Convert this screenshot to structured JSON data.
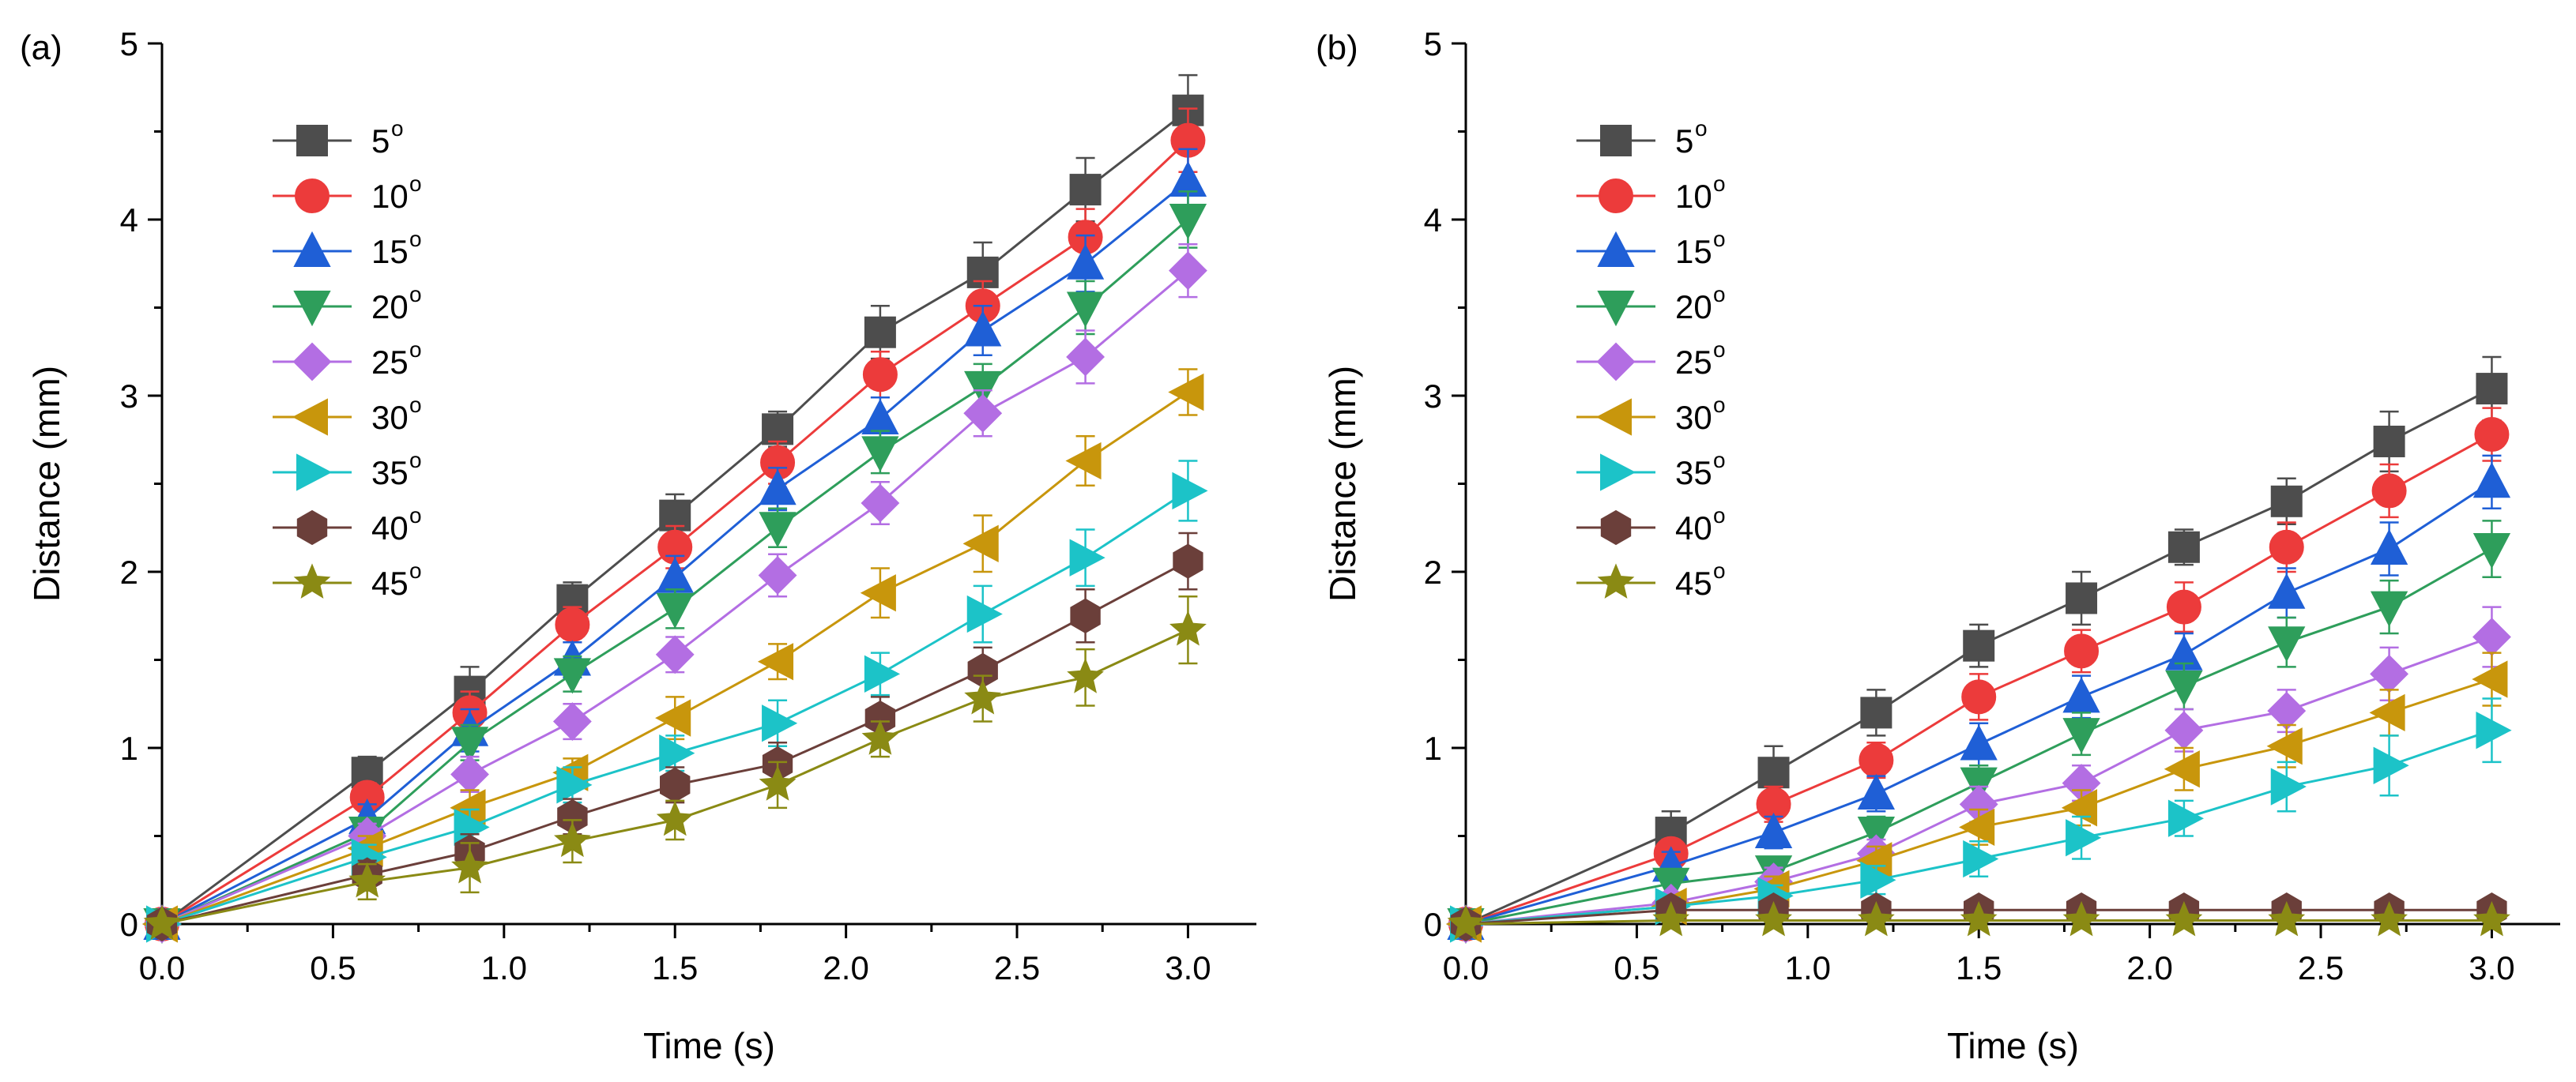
{
  "chart_data": [
    {
      "panel_label": "(a)",
      "type": "line",
      "xlabel": "Time (s)",
      "ylabel": "Distance (mm)",
      "xlim": [
        0,
        3.2
      ],
      "ylim": [
        0,
        5
      ],
      "x_ticks": [
        "0.0",
        "0.5",
        "1.0",
        "1.5",
        "2.0",
        "2.5",
        "3.0"
      ],
      "y_ticks": [
        "0",
        "1",
        "2",
        "3",
        "4",
        "5"
      ],
      "legend_position": "top-left",
      "x": [
        0,
        0.6,
        0.9,
        1.2,
        1.5,
        1.8,
        2.1,
        2.4,
        2.7,
        3.0
      ],
      "series": [
        {
          "name": "5",
          "marker": "square",
          "color": "#4d4d4d",
          "values": [
            0,
            0.86,
            1.32,
            1.84,
            2.32,
            2.81,
            3.36,
            3.7,
            4.17,
            4.62
          ],
          "errors": [
            0,
            0.09,
            0.14,
            0.1,
            0.12,
            0.1,
            0.15,
            0.17,
            0.18,
            0.2
          ]
        },
        {
          "name": "10",
          "marker": "circle",
          "color": "#ec3b3b",
          "values": [
            0,
            0.72,
            1.2,
            1.7,
            2.14,
            2.62,
            3.12,
            3.51,
            3.9,
            4.45
          ],
          "errors": [
            0,
            0.08,
            0.12,
            0.1,
            0.12,
            0.12,
            0.13,
            0.14,
            0.16,
            0.18
          ]
        },
        {
          "name": "15",
          "marker": "triangle-up",
          "color": "#1f5fd6",
          "values": [
            0,
            0.6,
            1.1,
            1.5,
            1.97,
            2.47,
            2.87,
            3.37,
            3.75,
            4.22
          ],
          "errors": [
            0,
            0.08,
            0.12,
            0.1,
            0.12,
            0.12,
            0.12,
            0.14,
            0.16,
            0.18
          ]
        },
        {
          "name": "20",
          "marker": "triangle-down",
          "color": "#2e9e5b",
          "values": [
            0,
            0.52,
            1.03,
            1.42,
            1.79,
            2.25,
            2.68,
            3.05,
            3.5,
            4.0
          ],
          "errors": [
            0,
            0.07,
            0.1,
            0.1,
            0.11,
            0.11,
            0.12,
            0.13,
            0.15,
            0.16
          ]
        },
        {
          "name": "25",
          "marker": "diamond",
          "color": "#b36ee3",
          "values": [
            0,
            0.5,
            0.85,
            1.15,
            1.53,
            1.98,
            2.39,
            2.9,
            3.22,
            3.71
          ],
          "errors": [
            0,
            0.07,
            0.1,
            0.1,
            0.1,
            0.12,
            0.12,
            0.13,
            0.15,
            0.15
          ]
        },
        {
          "name": "30",
          "marker": "triangle-left",
          "color": "#c8960c",
          "values": [
            0,
            0.43,
            0.66,
            0.86,
            1.17,
            1.49,
            1.88,
            2.16,
            2.63,
            3.02
          ],
          "errors": [
            0,
            0.07,
            0.1,
            0.08,
            0.12,
            0.1,
            0.14,
            0.16,
            0.14,
            0.13
          ]
        },
        {
          "name": "35",
          "marker": "triangle-right",
          "color": "#1cc3c8",
          "values": [
            0,
            0.38,
            0.55,
            0.79,
            0.97,
            1.14,
            1.42,
            1.76,
            2.08,
            2.46
          ],
          "errors": [
            0,
            0.07,
            0.1,
            0.1,
            0.1,
            0.13,
            0.12,
            0.16,
            0.16,
            0.17
          ]
        },
        {
          "name": "40",
          "marker": "hexagon",
          "color": "#6b3f3a",
          "values": [
            0,
            0.28,
            0.41,
            0.61,
            0.79,
            0.91,
            1.17,
            1.44,
            1.75,
            2.06
          ],
          "errors": [
            0,
            0.08,
            0.1,
            0.1,
            0.1,
            0.12,
            0.12,
            0.13,
            0.15,
            0.16
          ]
        },
        {
          "name": "45",
          "marker": "star",
          "color": "#8a8a14",
          "values": [
            0,
            0.24,
            0.32,
            0.47,
            0.59,
            0.79,
            1.05,
            1.28,
            1.4,
            1.67
          ],
          "errors": [
            0,
            0.1,
            0.14,
            0.12,
            0.11,
            0.13,
            0.1,
            0.13,
            0.16,
            0.19
          ]
        }
      ]
    },
    {
      "panel_label": "(b)",
      "type": "line",
      "xlabel": "Time (s)",
      "ylabel": "Distance (mm)",
      "xlim": [
        0,
        3.2
      ],
      "ylim": [
        0,
        5
      ],
      "x_ticks": [
        "0.0",
        "0.5",
        "1.0",
        "1.5",
        "2.0",
        "2.5",
        "3.0"
      ],
      "y_ticks": [
        "0",
        "1",
        "2",
        "3",
        "4",
        "5"
      ],
      "legend_position": "top-left",
      "x": [
        0,
        0.6,
        0.9,
        1.2,
        1.5,
        1.8,
        2.1,
        2.4,
        2.7,
        3.0
      ],
      "series": [
        {
          "name": "5",
          "marker": "square",
          "color": "#4d4d4d",
          "values": [
            0,
            0.52,
            0.86,
            1.2,
            1.58,
            1.85,
            2.14,
            2.4,
            2.74,
            3.04
          ],
          "errors": [
            0,
            0.12,
            0.15,
            0.13,
            0.12,
            0.15,
            0.1,
            0.13,
            0.17,
            0.18
          ]
        },
        {
          "name": "10",
          "marker": "circle",
          "color": "#ec3b3b",
          "values": [
            0,
            0.4,
            0.68,
            0.93,
            1.29,
            1.55,
            1.8,
            2.14,
            2.46,
            2.78
          ],
          "errors": [
            0,
            0.08,
            0.1,
            0.1,
            0.13,
            0.12,
            0.14,
            0.14,
            0.15,
            0.15
          ]
        },
        {
          "name": "15",
          "marker": "triangle-up",
          "color": "#1f5fd6",
          "values": [
            0,
            0.33,
            0.52,
            0.74,
            1.02,
            1.29,
            1.53,
            1.88,
            2.13,
            2.51
          ],
          "errors": [
            0,
            0.08,
            0.09,
            0.1,
            0.12,
            0.12,
            0.12,
            0.14,
            0.15,
            0.15
          ]
        },
        {
          "name": "20",
          "marker": "triangle-down",
          "color": "#2e9e5b",
          "values": [
            0,
            0.23,
            0.3,
            0.52,
            0.8,
            1.08,
            1.35,
            1.6,
            1.8,
            2.13
          ],
          "errors": [
            0,
            0.07,
            0.08,
            0.09,
            0.1,
            0.12,
            0.13,
            0.14,
            0.15,
            0.16
          ]
        },
        {
          "name": "25",
          "marker": "diamond",
          "color": "#b36ee3",
          "values": [
            0,
            0.12,
            0.24,
            0.4,
            0.68,
            0.8,
            1.1,
            1.21,
            1.42,
            1.63
          ],
          "errors": [
            0,
            0.06,
            0.08,
            0.08,
            0.1,
            0.1,
            0.12,
            0.12,
            0.15,
            0.17
          ]
        },
        {
          "name": "30",
          "marker": "triangle-left",
          "color": "#c8960c",
          "values": [
            0,
            0.1,
            0.2,
            0.36,
            0.55,
            0.66,
            0.88,
            1.01,
            1.2,
            1.39
          ],
          "errors": [
            0,
            0.06,
            0.07,
            0.08,
            0.1,
            0.1,
            0.12,
            0.12,
            0.13,
            0.15
          ]
        },
        {
          "name": "35",
          "marker": "triangle-right",
          "color": "#1cc3c8",
          "values": [
            0,
            0.1,
            0.16,
            0.25,
            0.37,
            0.49,
            0.6,
            0.78,
            0.9,
            1.1
          ],
          "errors": [
            0,
            0.05,
            0.06,
            0.08,
            0.1,
            0.12,
            0.1,
            0.14,
            0.17,
            0.18
          ]
        },
        {
          "name": "40",
          "marker": "hexagon",
          "color": "#6b3f3a",
          "values": [
            0,
            0.08,
            0.08,
            0.08,
            0.08,
            0.08,
            0.08,
            0.08,
            0.08,
            0.08
          ],
          "errors": [
            0,
            0,
            0,
            0,
            0,
            0,
            0,
            0,
            0,
            0
          ]
        },
        {
          "name": "45",
          "marker": "star",
          "color": "#8a8a14",
          "values": [
            0,
            0.02,
            0.02,
            0.02,
            0.02,
            0.02,
            0.02,
            0.02,
            0.02,
            0.02
          ],
          "errors": [
            0,
            0,
            0,
            0,
            0,
            0,
            0,
            0,
            0,
            0
          ]
        }
      ]
    }
  ]
}
